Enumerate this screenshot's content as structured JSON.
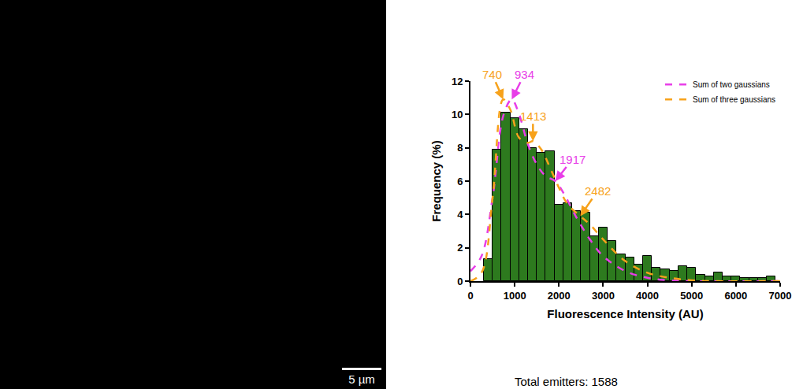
{
  "image_panel": {
    "scale_bar": "5 µm"
  },
  "chart_data": {
    "type": "histogram",
    "bins": [
      300,
      500,
      700,
      900,
      1100,
      1300,
      1500,
      1700,
      1900,
      2100,
      2300,
      2500,
      2700,
      2900,
      3100,
      3300,
      3500,
      3700,
      3900,
      4100,
      4300,
      4500,
      4700,
      4900,
      5100,
      5300,
      5500,
      5700,
      5900,
      6100,
      6300,
      6500,
      6700,
      6900
    ],
    "values": [
      1.3,
      7.9,
      10.1,
      9.8,
      9.1,
      8.0,
      7.7,
      7.8,
      4.6,
      4.7,
      4.2,
      4.1,
      2.7,
      3.2,
      2.4,
      1.6,
      1.4,
      1.0,
      1.5,
      0.8,
      0.7,
      0.6,
      0.9,
      0.8,
      0.4,
      0.3,
      0.5,
      0.3,
      0.3,
      0.2,
      0.2,
      0.2,
      0.3
    ],
    "color": "#2d7a1e",
    "xlabel": "Fluorescence Intensity (AU)",
    "ylabel": "Frequency (%)",
    "xlim": [
      0,
      7000
    ],
    "xticks": [
      0,
      1000,
      2000,
      3000,
      4000,
      5000,
      6000,
      7000
    ],
    "ylim": [
      0,
      12
    ],
    "yticks": [
      0,
      2,
      4,
      6,
      8,
      10,
      12
    ],
    "grid": false,
    "legend": "top-right",
    "series": [
      {
        "name": "Sum of two gaussians",
        "type": "line",
        "line_style": "dash",
        "color": "#e83ee8",
        "x": [
          0,
          250,
          500,
          750,
          934,
          1100,
          1300,
          1500,
          1700,
          1917,
          2100,
          2400,
          2700,
          3000,
          3500,
          4000,
          4500,
          5000,
          7000
        ],
        "values": [
          0.6,
          1.5,
          5.0,
          10.0,
          10.9,
          10.0,
          8.2,
          7.0,
          6.3,
          6.0,
          5.3,
          3.8,
          2.5,
          1.5,
          0.6,
          0.2,
          0.05,
          0,
          0
        ]
      },
      {
        "name": "Sum of three gaussians",
        "type": "line",
        "line_style": "dash",
        "color": "#f7a21b",
        "x": [
          0,
          250,
          500,
          740,
          900,
          1100,
          1300,
          1413,
          1600,
          1800,
          2000,
          2200,
          2482,
          2700,
          3000,
          3500,
          4000,
          4500,
          5000,
          5500,
          7000
        ],
        "values": [
          0,
          0.5,
          5.0,
          10.9,
          10.3,
          8.6,
          8.3,
          8.4,
          7.9,
          6.8,
          5.6,
          4.6,
          3.9,
          3.4,
          2.5,
          1.2,
          0.5,
          0.2,
          0.05,
          0,
          0
        ]
      }
    ],
    "annotations": [
      {
        "text": "740",
        "x": 740,
        "y": 10.9,
        "color": "#f7a21b"
      },
      {
        "text": "934",
        "x": 934,
        "y": 10.9,
        "color": "#e83ee8"
      },
      {
        "text": "1413",
        "x": 1413,
        "y": 8.4,
        "color": "#f7a21b"
      },
      {
        "text": "1917",
        "x": 1917,
        "y": 6.0,
        "color": "#e83ee8"
      },
      {
        "text": "2482",
        "x": 2482,
        "y": 3.9,
        "color": "#f7a21b"
      }
    ],
    "caption": "Total emitters: 1588"
  }
}
